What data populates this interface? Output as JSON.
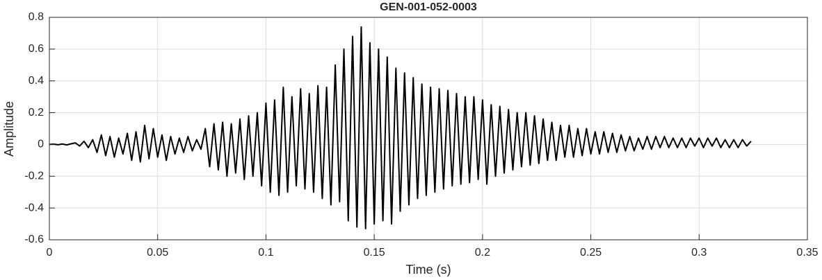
{
  "chart_data": {
    "type": "line",
    "title": "GEN-001-052-0003",
    "x_label": "Time (s)",
    "y_label": "Amplitude",
    "x": [
      0,
      0.002,
      0.004,
      0.006,
      0.008,
      0.01,
      0.012,
      0.014,
      0.016,
      0.018,
      0.02,
      0.022,
      0.024,
      0.026,
      0.028,
      0.03,
      0.032,
      0.034,
      0.036,
      0.038,
      0.04,
      0.042,
      0.044,
      0.046,
      0.048,
      0.05,
      0.052,
      0.054,
      0.056,
      0.058,
      0.06,
      0.062,
      0.064,
      0.066,
      0.068,
      0.07,
      0.072,
      0.074,
      0.076,
      0.078,
      0.08,
      0.082,
      0.084,
      0.086,
      0.088,
      0.09,
      0.092,
      0.094,
      0.096,
      0.098,
      0.1,
      0.102,
      0.104,
      0.106,
      0.108,
      0.11,
      0.112,
      0.114,
      0.116,
      0.118,
      0.12,
      0.122,
      0.124,
      0.126,
      0.128,
      0.13,
      0.132,
      0.134,
      0.136,
      0.138,
      0.14,
      0.142,
      0.144,
      0.146,
      0.148,
      0.15,
      0.152,
      0.154,
      0.156,
      0.158,
      0.16,
      0.162,
      0.164,
      0.166,
      0.168,
      0.17,
      0.172,
      0.174,
      0.176,
      0.178,
      0.18,
      0.182,
      0.184,
      0.186,
      0.188,
      0.19,
      0.192,
      0.194,
      0.196,
      0.198,
      0.2,
      0.202,
      0.204,
      0.206,
      0.208,
      0.21,
      0.212,
      0.214,
      0.216,
      0.218,
      0.22,
      0.222,
      0.224,
      0.226,
      0.228,
      0.23,
      0.232,
      0.234,
      0.236,
      0.238,
      0.24,
      0.242,
      0.244,
      0.246,
      0.248,
      0.25,
      0.252,
      0.254,
      0.256,
      0.258,
      0.26,
      0.262,
      0.264,
      0.266,
      0.268,
      0.27,
      0.272,
      0.274,
      0.276,
      0.278,
      0.28,
      0.282,
      0.284,
      0.286,
      0.288,
      0.29,
      0.292,
      0.294,
      0.296,
      0.298,
      0.3,
      0.302,
      0.304,
      0.306,
      0.308,
      0.31,
      0.312,
      0.314,
      0.316,
      0.318,
      0.32,
      0.322,
      0.324
    ],
    "values": [
      0,
      0.002,
      -0.002,
      0.003,
      -0.003,
      0.004,
      0.01,
      -0.01,
      0.02,
      -0.02,
      0.03,
      -0.05,
      0.06,
      -0.07,
      0.05,
      -0.08,
      0.04,
      -0.06,
      0.07,
      -0.1,
      0.08,
      -0.11,
      0.12,
      -0.09,
      0.1,
      -0.08,
      0.06,
      -0.1,
      0.05,
      -0.06,
      0.04,
      -0.05,
      0.05,
      -0.04,
      0.03,
      -0.03,
      0.1,
      -0.14,
      0.13,
      -0.16,
      0.14,
      -0.2,
      0.13,
      -0.18,
      0.16,
      -0.22,
      0.18,
      -0.2,
      0.2,
      -0.26,
      0.26,
      -0.3,
      0.28,
      -0.32,
      0.36,
      -0.3,
      0.3,
      -0.26,
      0.35,
      -0.28,
      0.32,
      -0.3,
      0.37,
      -0.34,
      0.36,
      -0.38,
      0.5,
      -0.36,
      0.6,
      -0.48,
      0.68,
      -0.52,
      0.74,
      -0.53,
      0.64,
      -0.5,
      0.6,
      -0.48,
      0.55,
      -0.5,
      0.48,
      -0.42,
      0.45,
      -0.38,
      0.42,
      -0.34,
      0.38,
      -0.32,
      0.36,
      -0.3,
      0.35,
      -0.28,
      0.34,
      -0.26,
      0.32,
      -0.25,
      0.3,
      -0.24,
      0.3,
      -0.22,
      0.28,
      -0.25,
      0.25,
      -0.2,
      0.24,
      -0.18,
      0.22,
      -0.16,
      0.2,
      -0.14,
      0.2,
      -0.13,
      0.18,
      -0.12,
      0.16,
      -0.1,
      0.14,
      -0.1,
      0.12,
      -0.08,
      0.12,
      -0.08,
      0.1,
      -0.07,
      0.1,
      -0.06,
      0.08,
      -0.06,
      0.08,
      -0.05,
      0.07,
      -0.05,
      0.06,
      -0.04,
      0.05,
      -0.04,
      0.04,
      -0.03,
      0.05,
      -0.03,
      0.05,
      -0.02,
      0.05,
      -0.02,
      0.04,
      -0.02,
      0.04,
      -0.02,
      0.04,
      -0.01,
      0.04,
      -0.02,
      0.04,
      -0.01,
      0.04,
      -0.02,
      0.03,
      -0.02,
      0.03,
      -0.02,
      0.03,
      -0.01,
      0.02
    ],
    "color": "#000000",
    "xlim": [
      0,
      0.35
    ],
    "xticks": [
      0,
      0.05,
      0.1,
      0.15,
      0.2,
      0.25,
      0.3,
      0.35
    ],
    "ylim": [
      -0.6,
      0.8
    ],
    "yticks": [
      -0.6,
      -0.4,
      -0.2,
      0,
      0.2,
      0.4,
      0.6,
      0.8
    ],
    "grid": true
  }
}
